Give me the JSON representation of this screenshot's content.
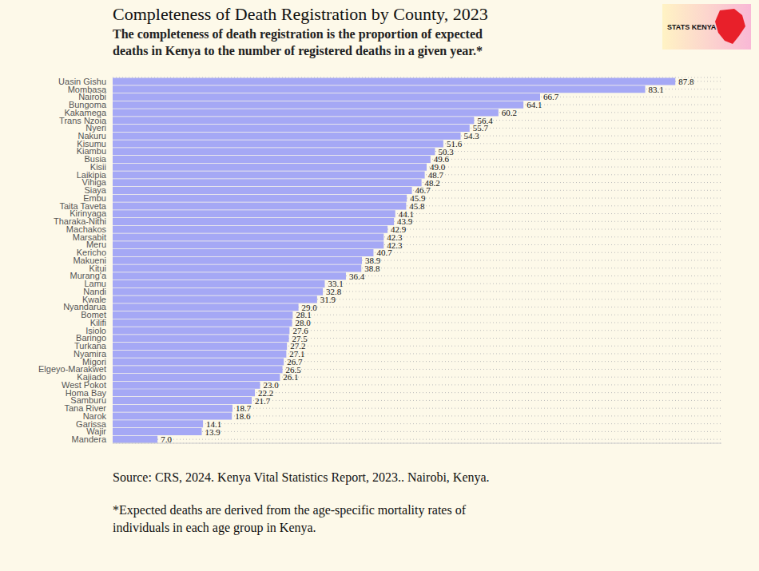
{
  "chart_data": {
    "type": "bar",
    "title": "Completeness of Death Registration by County, 2023",
    "subtitle": [
      "The completeness of death registration is the proportion of expected",
      "deaths in Kenya to the number of registered deaths in a given year.*"
    ],
    "source": "Source: CRS, 2024. Kenya Vital Statistics Report, 2023.. Nairobi, Kenya.",
    "footnote": [
      "*Expected deaths are derived from the age-specific mortality rates of",
      "individuals in each age group in Kenya."
    ],
    "logo": "STATS KENYA",
    "orientation": "horizontal",
    "categories": [
      "Uasin Gishu",
      "Mombasa",
      "Nairobi",
      "Bungoma",
      "Kakamega",
      "Trans Nzoia",
      "Nyeri",
      "Nakuru",
      "Kisumu",
      "Kiambu",
      "Busia",
      "Kisii",
      "Laikipia",
      "Vihiga",
      "Siaya",
      "Embu",
      "Taita Taveta",
      "Kirinyaga",
      "Tharaka-Nithi",
      "Machakos",
      "Marsabit",
      "Meru",
      "Kericho",
      "Makueni",
      "Kitui",
      "Murang'a",
      "Lamu",
      "Nandi",
      "Kwale",
      "Nyandarua",
      "Bomet",
      "Kilifi",
      "Isiolo",
      "Baringo",
      "Turkana",
      "Nyamira",
      "Migori",
      "Elgeyo-Marakwet",
      "Kajiado",
      "West Pokot",
      "Homa Bay",
      "Samburu",
      "Tana River",
      "Narok",
      "Garissa",
      "Wajir",
      "Mandera"
    ],
    "values": [
      87.8,
      83.1,
      66.7,
      64.1,
      60.2,
      56.4,
      55.7,
      54.3,
      51.6,
      50.3,
      49.6,
      49.0,
      48.7,
      48.2,
      46.7,
      45.9,
      45.8,
      44.1,
      43.9,
      42.9,
      42.3,
      42.3,
      40.7,
      38.9,
      38.8,
      36.4,
      33.1,
      32.8,
      31.9,
      29.0,
      28.1,
      28.0,
      27.6,
      27.5,
      27.2,
      27.1,
      26.7,
      26.5,
      26.1,
      23.0,
      22.2,
      21.7,
      18.7,
      18.6,
      14.1,
      13.9,
      7.0
    ],
    "value_labels": [
      "87.8",
      "83.1",
      "66.7",
      "64.1",
      "60.2",
      "56.4",
      "55.7",
      "54.3",
      "51.6",
      "50.3",
      "49.6",
      "49.0",
      "48.7",
      "48.2",
      "46.7",
      "45.9",
      "45.8",
      "44.1",
      "43.9",
      "42.9",
      "42.3",
      "42.3",
      "40.7",
      "38.9",
      "38.8",
      "36.4",
      "33.1",
      "32.8",
      "31.9",
      "29.0",
      "28.1",
      "28.0",
      "27.6",
      "27.5",
      "27.2",
      "27.1",
      "26.7",
      "26.5",
      "26.1",
      "23.0",
      "22.2",
      "21.7",
      "18.7",
      "18.6",
      "14.1",
      "13.9",
      "7.0"
    ],
    "color": "#a5a8f5",
    "xlim": [
      0,
      95
    ],
    "grid": true,
    "data_labels": true,
    "tick_labels": "y"
  }
}
